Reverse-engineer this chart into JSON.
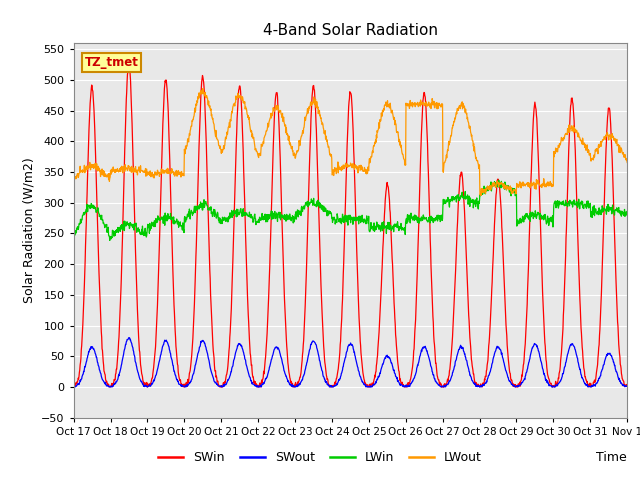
{
  "title": "4-Band Solar Radiation",
  "xlabel": "Time",
  "ylabel": "Solar Radiation (W/m2)",
  "ylim": [
    -50,
    560
  ],
  "yticks": [
    -50,
    0,
    50,
    100,
    150,
    200,
    250,
    300,
    350,
    400,
    450,
    500,
    550
  ],
  "colors": {
    "SWin": "#ff0000",
    "SWout": "#0000ff",
    "LWin": "#00cc00",
    "LWout": "#ff9900"
  },
  "background_color": "#e8e8e8",
  "legend_label": "TZ_tmet",
  "legend_box_color": "#ffff99",
  "legend_box_border": "#cc8800",
  "num_days": 15,
  "xtick_labels": [
    "Oct 17",
    "Oct 18",
    "Oct 19",
    "Oct 20",
    "Oct 21",
    "Oct 22",
    "Oct 23",
    "Oct 24",
    "Oct 25",
    "Oct 26",
    "Oct 27",
    "Oct 28",
    "Oct 29",
    "Oct 30",
    "Oct 31",
    "Nov 1"
  ],
  "SWin_peaks": [
    490,
    525,
    500,
    505,
    490,
    480,
    490,
    480,
    330,
    480,
    350,
    340,
    460,
    470,
    455
  ],
  "SWout_peaks": [
    65,
    80,
    75,
    75,
    70,
    65,
    75,
    70,
    50,
    65,
    65,
    65,
    70,
    70,
    55
  ],
  "LWout_day": [
    360,
    355,
    350,
    480,
    475,
    455,
    465,
    360,
    460,
    455,
    460,
    330,
    325,
    420,
    410
  ],
  "LWout_night": [
    335,
    350,
    345,
    360,
    355,
    355,
    350,
    350,
    340,
    460,
    330,
    315,
    330,
    370,
    360
  ],
  "LWin_day": [
    295,
    265,
    275,
    295,
    285,
    280,
    300,
    275,
    260,
    265,
    310,
    330,
    280,
    300,
    290
  ],
  "LWin_night": [
    230,
    240,
    255,
    265,
    265,
    270,
    275,
    270,
    260,
    275,
    295,
    310,
    265,
    295,
    280
  ]
}
